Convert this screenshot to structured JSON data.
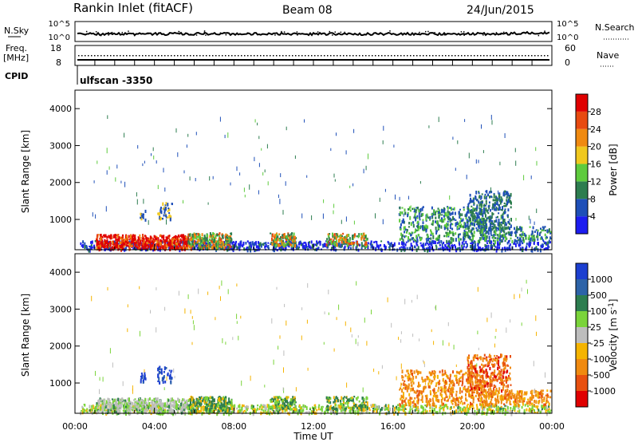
{
  "header": {
    "station": "Rankin Inlet (fitACF)",
    "beam": "Beam 08",
    "date": "24/Jun/2015"
  },
  "top_panels": {
    "nsky_label": "N.Sky",
    "nsearch_label": "N.Search",
    "freq_label_line1": "Freq.",
    "freq_label_line2": "[MHz]",
    "nave_label": "Nave",
    "cpid_label": "CPID",
    "cpid_value": "ulfscan -3350",
    "noise_ticks": [
      "10^5",
      "10^0"
    ],
    "freq_ticks": [
      "18",
      "8"
    ],
    "nave_ticks": [
      "60",
      "0"
    ]
  },
  "colors": {
    "power": [
      "#1c1cf0",
      "#1e4fb8",
      "#2d7d4f",
      "#5ecb3d",
      "#f0c81e",
      "#f08a10",
      "#e84a10",
      "#e00000"
    ],
    "velocity": [
      "#1c3fd0",
      "#2d63a8",
      "#2d7d4f",
      "#7ad43a",
      "#bdbdbd",
      "#f5b400",
      "#f08a10",
      "#e85010",
      "#e00000"
    ]
  },
  "chart_data": [
    {
      "type": "heatmap",
      "name": "power",
      "xlabel": "Time UT",
      "ylabel": "Slant Range [km]",
      "x_ticks": [
        "00:00",
        "04:00",
        "08:00",
        "12:00",
        "16:00",
        "20:00",
        "00:00"
      ],
      "x_range_hours": [
        0,
        24
      ],
      "y_ticks": [
        1000,
        2000,
        3000,
        4000
      ],
      "ylim": [
        180,
        4500
      ],
      "colorbar_label": "Power [dB]",
      "colorbar_ticks": [
        "4",
        "8",
        "12",
        "16",
        "20",
        "24",
        "28"
      ],
      "colorbar_range": [
        0,
        30
      ]
    },
    {
      "type": "heatmap",
      "name": "velocity",
      "xlabel": "Time UT",
      "ylabel": "Slant Range [km]",
      "x_ticks": [
        "00:00",
        "04:00",
        "08:00",
        "12:00",
        "16:00",
        "20:00",
        "00:00"
      ],
      "x_range_hours": [
        0,
        24
      ],
      "y_ticks": [
        1000,
        2000,
        3000,
        4000
      ],
      "ylim": [
        180,
        4500
      ],
      "colorbar_label": "Velocity [m s^-1]",
      "colorbar_ticks": [
        "1000",
        "500",
        "100",
        "25",
        "-25",
        "-100",
        "-500",
        "-1000"
      ]
    }
  ]
}
